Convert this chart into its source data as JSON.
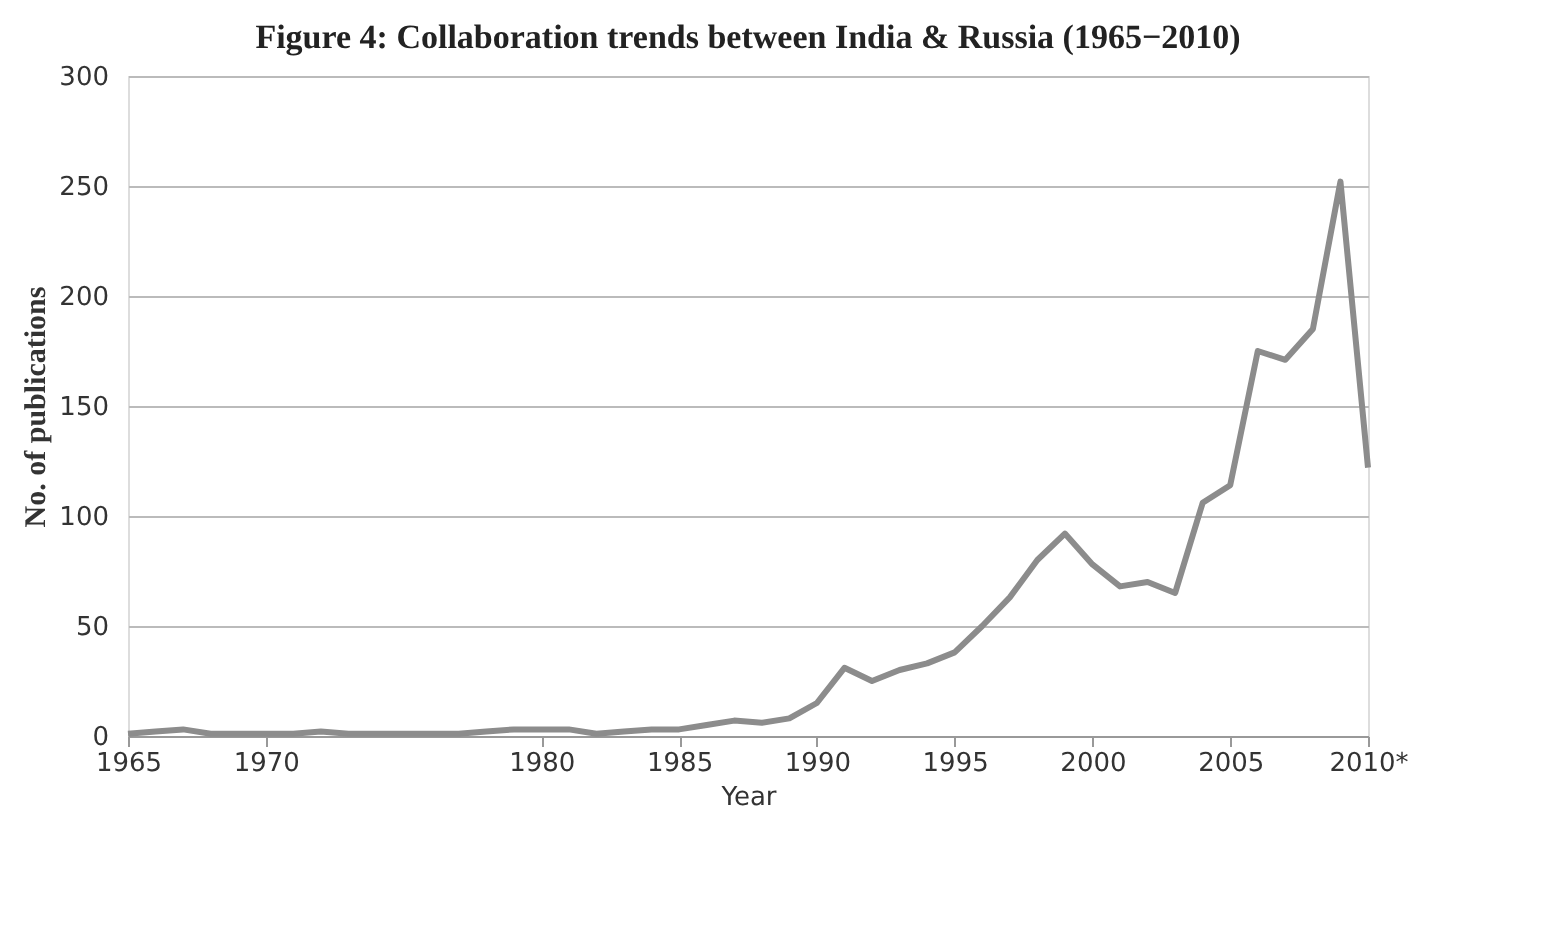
{
  "chart_data": {
    "type": "line",
    "title": "Figure 4: Collaboration trends between India & Russia (1965−2010)",
    "xlabel": "Year",
    "ylabel": "No. of publications",
    "x": [
      1965,
      1966,
      1967,
      1968,
      1969,
      1970,
      1971,
      1972,
      1973,
      1974,
      1975,
      1976,
      1977,
      1978,
      1979,
      1980,
      1981,
      1982,
      1983,
      1984,
      1985,
      1986,
      1987,
      1988,
      1989,
      1990,
      1991,
      1992,
      1993,
      1994,
      1995,
      1996,
      1997,
      1998,
      1999,
      2000,
      2001,
      2002,
      2003,
      2004,
      2005,
      2006,
      2007,
      2008,
      2009,
      2010
    ],
    "series": [
      {
        "color": "#8c8c8c",
        "values": [
          1,
          2,
          3,
          1,
          1,
          1,
          1,
          2,
          1,
          1,
          1,
          1,
          1,
          2,
          3,
          3,
          3,
          1,
          2,
          3,
          3,
          5,
          7,
          6,
          8,
          15,
          31,
          25,
          30,
          33,
          38,
          50,
          63,
          80,
          92,
          78,
          68,
          70,
          65,
          106,
          114,
          175,
          171,
          185,
          252,
          122
        ]
      }
    ],
    "xlim": [
      1965,
      2010
    ],
    "xticks": [
      1965,
      1970,
      1980,
      1985,
      1990,
      1995,
      2000,
      2005,
      {
        "value": 2010,
        "label": "2010*"
      }
    ],
    "ylim": [
      0,
      300
    ],
    "yticks": [
      0,
      50,
      100,
      150,
      200,
      250,
      300
    ],
    "grid": "y",
    "marker": "none",
    "line_style": "solid"
  }
}
